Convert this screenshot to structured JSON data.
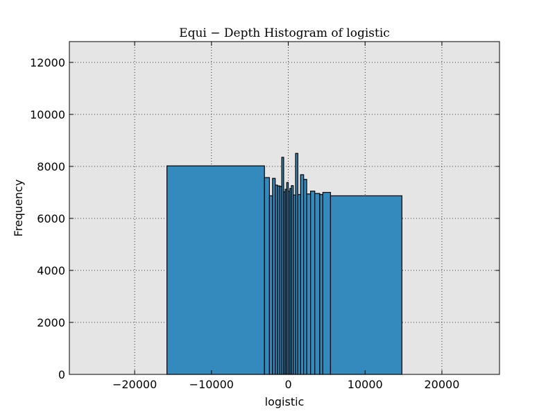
{
  "chart_data": {
    "type": "bar",
    "title": "Equi − Depth Histogram of logistic",
    "xlabel": "logistic",
    "ylabel": "Frequency",
    "xlim": [
      -28500,
      27500
    ],
    "ylim": [
      0,
      12800
    ],
    "x_ticks": [
      -20000,
      -10000,
      0,
      10000,
      20000
    ],
    "x_tick_labels": [
      "−20000",
      "−10000",
      "0",
      "10000",
      "20000"
    ],
    "y_ticks": [
      0,
      2000,
      4000,
      6000,
      8000,
      10000,
      12000
    ],
    "y_tick_labels": [
      "0",
      "2000",
      "4000",
      "6000",
      "8000",
      "10000",
      "12000"
    ],
    "grid": true,
    "colors": {
      "bar": "#348ABD",
      "plot_bg": "#E5E5E5",
      "edge": "#000000"
    },
    "bins": [
      {
        "x0": -15800,
        "x1": -3100,
        "count": 8020
      },
      {
        "x0": -3100,
        "x1": -2450,
        "count": 7570
      },
      {
        "x0": -2450,
        "x1": -2050,
        "count": 6870
      },
      {
        "x0": -2050,
        "x1": -1700,
        "count": 7540
      },
      {
        "x0": -1700,
        "x1": -1400,
        "count": 7280
      },
      {
        "x0": -1400,
        "x1": -1100,
        "count": 7250
      },
      {
        "x0": -1100,
        "x1": -850,
        "count": 7230
      },
      {
        "x0": -850,
        "x1": -600,
        "count": 8350
      },
      {
        "x0": -600,
        "x1": -400,
        "count": 7020
      },
      {
        "x0": -400,
        "x1": -200,
        "count": 7120
      },
      {
        "x0": -200,
        "x1": 0,
        "count": 7380
      },
      {
        "x0": 0,
        "x1": 200,
        "count": 7050
      },
      {
        "x0": 200,
        "x1": 400,
        "count": 7150
      },
      {
        "x0": 400,
        "x1": 650,
        "count": 7260
      },
      {
        "x0": 650,
        "x1": 950,
        "count": 6900
      },
      {
        "x0": 950,
        "x1": 1250,
        "count": 8500
      },
      {
        "x0": 1250,
        "x1": 1600,
        "count": 6920
      },
      {
        "x0": 1600,
        "x1": 2000,
        "count": 7680
      },
      {
        "x0": 2000,
        "x1": 2400,
        "count": 7500
      },
      {
        "x0": 2400,
        "x1": 2900,
        "count": 6940
      },
      {
        "x0": 2900,
        "x1": 3450,
        "count": 7050
      },
      {
        "x0": 3450,
        "x1": 4100,
        "count": 6960
      },
      {
        "x0": 4100,
        "x1": 4500,
        "count": 6920
      },
      {
        "x0": 4500,
        "x1": 5500,
        "count": 7000
      },
      {
        "x0": 5500,
        "x1": 14800,
        "count": 6870
      }
    ]
  }
}
